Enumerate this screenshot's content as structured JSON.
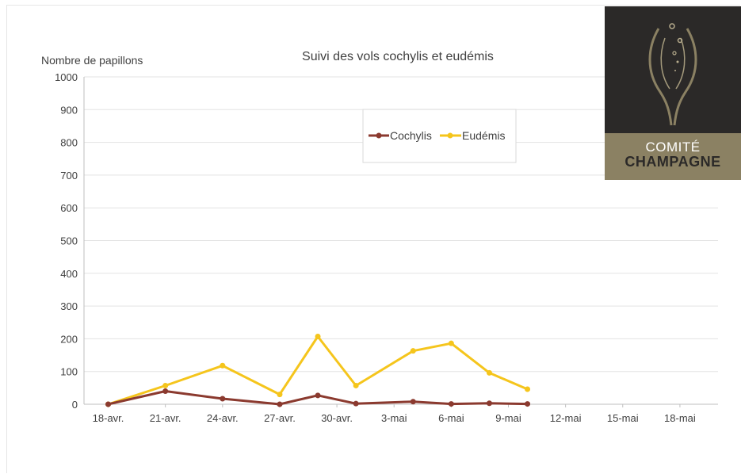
{
  "chart_data": {
    "type": "line",
    "title": "Suivi des vols cochylis et eudémis",
    "ylabel": "Nombre de papillons",
    "xlabel": "",
    "ylim": [
      0,
      1000
    ],
    "yticks": [
      0,
      100,
      200,
      300,
      400,
      500,
      600,
      700,
      800,
      900,
      1000
    ],
    "xlim": [
      "18-avr.",
      "20-mai"
    ],
    "xtick_labels": [
      "18-avr.",
      "21-avr.",
      "24-avr.",
      "27-avr.",
      "30-avr.",
      "3-mai",
      "6-mai",
      "9-mai",
      "12-mai",
      "15-mai",
      "18-mai"
    ],
    "x": [
      "18-avr.",
      "21-avr.",
      "24-avr.",
      "27-avr.",
      "29-avr.",
      "1-mai",
      "4-mai",
      "6-mai",
      "8-mai",
      "10-mai"
    ],
    "series": [
      {
        "name": "Cochylis",
        "color": "#8b3a2f",
        "values": [
          0,
          40,
          17,
          0,
          27,
          2,
          8,
          1,
          3,
          1
        ]
      },
      {
        "name": "Eudémis",
        "color": "#f5c51c",
        "values": [
          0,
          57,
          118,
          30,
          207,
          57,
          163,
          186,
          96,
          46
        ]
      }
    ],
    "grid": true,
    "legend_position": "top-center"
  },
  "logo": {
    "line1": "COMITÉ",
    "line2": "CHAMPAGNE",
    "background": "#2b2928",
    "band_color": "#8b8163"
  }
}
